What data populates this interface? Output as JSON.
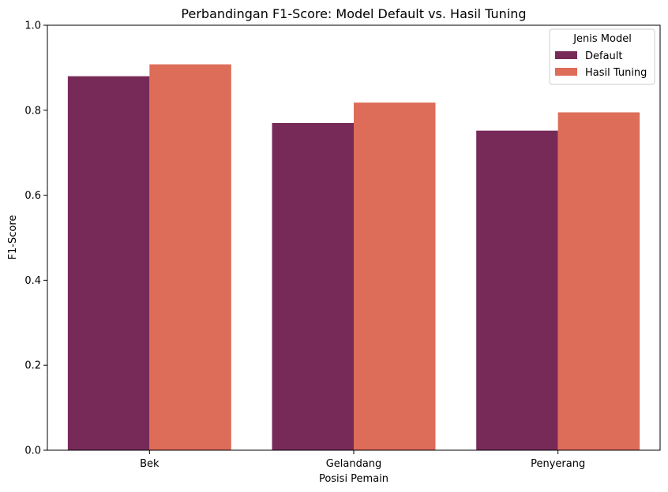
{
  "chart_data": {
    "type": "bar",
    "title": "Perbandingan F1-Score: Model Default vs. Hasil Tuning",
    "xlabel": "Posisi Pemain",
    "ylabel": "F1-Score",
    "categories": [
      "Bek",
      "Gelandang",
      "Penyerang"
    ],
    "series": [
      {
        "name": "Default",
        "color": "#772a58",
        "values": [
          0.88,
          0.77,
          0.752
        ]
      },
      {
        "name": "Hasil Tuning",
        "color": "#dd6c58",
        "values": [
          0.908,
          0.818,
          0.795
        ]
      }
    ],
    "ylim": [
      0,
      1.0
    ],
    "yticks": [
      "0.0",
      "0.2",
      "0.4",
      "0.6",
      "0.8",
      "1.0"
    ],
    "grid": false,
    "legend": {
      "title": "Jenis Model",
      "position": "top-right"
    }
  }
}
